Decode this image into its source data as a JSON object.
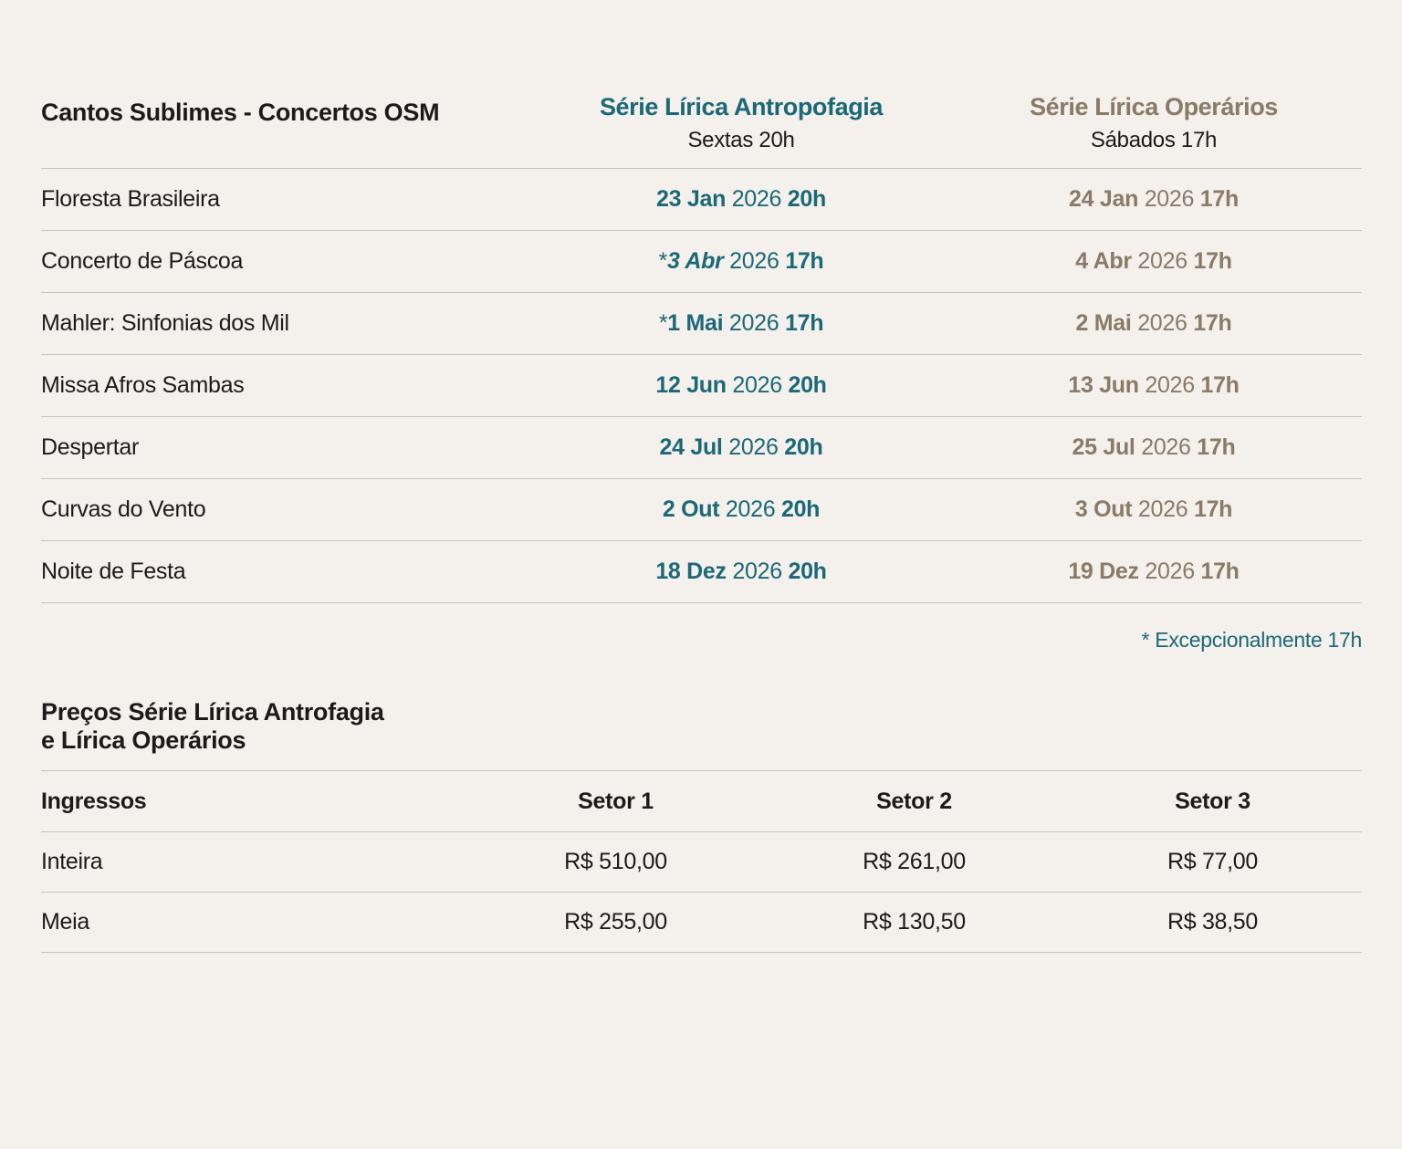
{
  "page": {
    "colors": {
      "background": "#f4f0ec",
      "text": "#1c1b1a",
      "teal": "#1b6877",
      "brown": "#8a7a66",
      "divider": "#c6c1bc"
    }
  },
  "schedule": {
    "title": "Cantos Sublimes - Concertos OSM",
    "columns": [
      {
        "title": "Série Lírica Antropofagia",
        "subtitle": "Sextas 20h",
        "color": "#1b6877"
      },
      {
        "title": "Série Lírica Operários",
        "subtitle": "Sábados 17h",
        "color": "#8a7a66"
      }
    ],
    "rows": [
      {
        "name": "Floresta Brasileira",
        "antropofagia": {
          "star": false,
          "italic": false,
          "day": "23 Jan",
          "year": "2026",
          "time": "20h"
        },
        "operarios": {
          "star": false,
          "italic": false,
          "day": "24 Jan",
          "year": "2026",
          "time": "17h"
        }
      },
      {
        "name": "Concerto de Páscoa",
        "antropofagia": {
          "star": true,
          "italic": true,
          "day": "3 Abr",
          "year": "2026",
          "time": "17h"
        },
        "operarios": {
          "star": false,
          "italic": false,
          "day": "4 Abr",
          "year": "2026",
          "time": "17h"
        }
      },
      {
        "name": "Mahler: Sinfonias dos Mil",
        "antropofagia": {
          "star": true,
          "italic": false,
          "day": "1 Mai",
          "year": "2026",
          "time": "17h"
        },
        "operarios": {
          "star": false,
          "italic": false,
          "day": "2 Mai",
          "year": "2026",
          "time": "17h"
        }
      },
      {
        "name": "Missa Afros Sambas",
        "antropofagia": {
          "star": false,
          "italic": false,
          "day": "12 Jun",
          "year": "2026",
          "time": "20h"
        },
        "operarios": {
          "star": false,
          "italic": false,
          "day": "13 Jun",
          "year": "2026",
          "time": "17h"
        }
      },
      {
        "name": "Despertar",
        "antropofagia": {
          "star": false,
          "italic": false,
          "day": "24 Jul",
          "year": "2026",
          "time": "20h"
        },
        "operarios": {
          "star": false,
          "italic": false,
          "day": "25 Jul",
          "year": "2026",
          "time": "17h"
        }
      },
      {
        "name": "Curvas do Vento",
        "antropofagia": {
          "star": false,
          "italic": false,
          "day": "2 Out",
          "year": "2026",
          "time": "20h"
        },
        "operarios": {
          "star": false,
          "italic": false,
          "day": "3 Out",
          "year": "2026",
          "time": "17h"
        }
      },
      {
        "name": "Noite de Festa",
        "antropofagia": {
          "star": false,
          "italic": false,
          "day": "18 Dez",
          "year": "2026",
          "time": "20h"
        },
        "operarios": {
          "star": false,
          "italic": false,
          "day": "19 Dez",
          "year": "2026",
          "time": "17h"
        }
      }
    ],
    "footnote": "* Excepcionalmente 17h"
  },
  "prices": {
    "title_line1": "Preços Série Lírica Antrofagia",
    "title_line2": "e Lírica Operários",
    "header": [
      "Ingressos",
      "Setor 1",
      "Setor 2",
      "Setor 3"
    ],
    "rows": [
      {
        "label": "Inteira",
        "values": [
          "R$ 510,00",
          "R$ 261,00",
          "R$ 77,00"
        ]
      },
      {
        "label": "Meia",
        "values": [
          "R$ 255,00",
          "R$ 130,50",
          "R$ 38,50"
        ]
      }
    ]
  }
}
